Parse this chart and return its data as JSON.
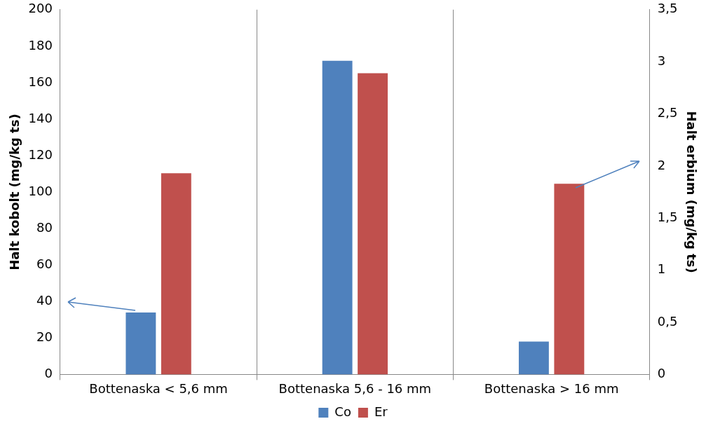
{
  "chart_data": {
    "type": "bar",
    "categories": [
      "Bottenaska < 5,6 mm",
      "Bottenaska 5,6 - 16 mm",
      "Bottenaska > 16 mm"
    ],
    "series": [
      {
        "name": "Co",
        "color": "#4f81bd",
        "values": [
          34,
          172,
          18
        ]
      },
      {
        "name": "Er",
        "color": "#c0504d",
        "values": [
          1.93,
          2.89,
          1.83
        ],
        "axis": "y2"
      }
    ],
    "ylabel": "Halt kobolt (mg/kg ts)",
    "y2label": "Halt erbium (mg/kg ts)",
    "ylim": [
      0,
      200
    ],
    "yticks": [
      0,
      20,
      40,
      60,
      80,
      100,
      120,
      140,
      160,
      180,
      200
    ],
    "y2lim": [
      0,
      3.5
    ],
    "y2ticks": [
      0,
      {
        "value": 0.5,
        "label": "0,5"
      },
      1,
      {
        "value": 1.5,
        "label": "1,5"
      },
      2,
      {
        "value": 2.5,
        "label": "2,5"
      },
      3,
      {
        "value": 3.5,
        "label": "3,5"
      }
    ],
    "grid": "x",
    "legend": "bottom"
  }
}
